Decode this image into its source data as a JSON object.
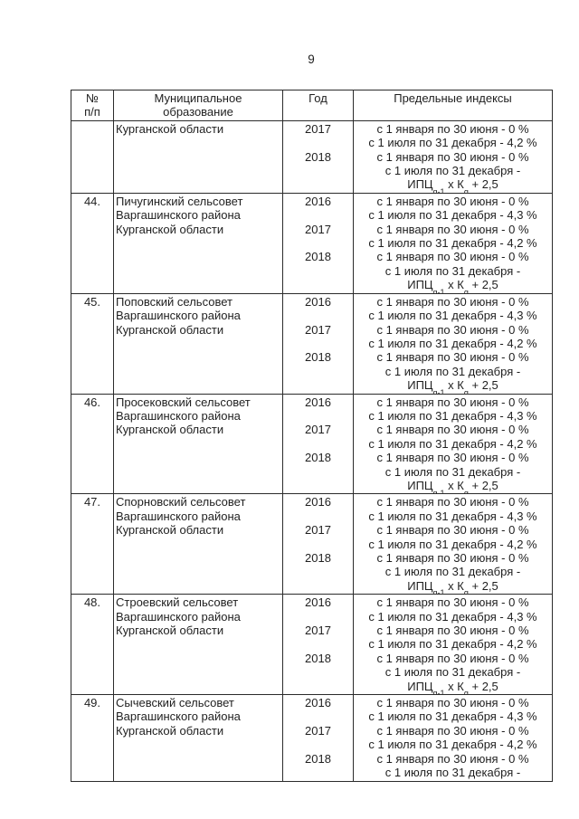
{
  "page": {
    "number": "9"
  },
  "table": {
    "headers": {
      "col1": [
        "№",
        "п/п"
      ],
      "col2": [
        "Муниципальное",
        "образование"
      ],
      "col3": "Год",
      "col4": "Предельные индексы"
    },
    "rows": [
      {
        "num": "",
        "municipality": [
          "Курганской области"
        ],
        "years": [
          "2017",
          "",
          "2018"
        ],
        "indices": [
          "с 1 января по 30 июня - 0 %",
          "с 1 июля по 31 декабря - 4,2 %",
          "с 1 января по 30 июня - 0 %",
          "с 1 июля по 31 декабря -",
          {
            "formula": [
              {
                "t": "ИПЦ"
              },
              {
                "sub": "g-1"
              },
              {
                "t": " х К"
              },
              {
                "sub": "g"
              },
              {
                "t": " + 2,5"
              }
            ]
          }
        ]
      },
      {
        "num": "44.",
        "municipality": [
          "Пичугинский сельсовет",
          "Варгашинского района",
          "Курганской области"
        ],
        "years": [
          "2016",
          "",
          "2017",
          "",
          "2018"
        ],
        "indices": [
          "с 1 января по 30 июня - 0 %",
          "с 1 июля по 31 декабря - 4,3 %",
          "с 1 января по 30 июня - 0 %",
          "с 1 июля по 31 декабря - 4,2 %",
          "с 1 января по 30 июня - 0 %",
          "с 1 июля по 31 декабря -",
          {
            "formula": [
              {
                "t": "ИПЦ"
              },
              {
                "sub": "g-1"
              },
              {
                "t": " х К"
              },
              {
                "sub": "g"
              },
              {
                "t": " + 2,5"
              }
            ]
          }
        ]
      },
      {
        "num": "45.",
        "municipality": [
          "Поповский сельсовет",
          "Варгашинского района",
          "Курганской области"
        ],
        "years": [
          "2016",
          "",
          "2017",
          "",
          "2018"
        ],
        "indices": [
          "с 1 января по 30 июня - 0 %",
          "с 1 июля по 31 декабря - 4,3 %",
          "с 1 января по 30 июня - 0 %",
          "с 1 июля по 31 декабря - 4,2 %",
          "с 1 января по 30 июня - 0 %",
          "с 1 июля по 31 декабря -",
          {
            "formula": [
              {
                "t": "ИПЦ"
              },
              {
                "sub": "g-1"
              },
              {
                "t": " х К"
              },
              {
                "sub": "g"
              },
              {
                "t": " + 2,5"
              }
            ]
          }
        ]
      },
      {
        "num": "46.",
        "municipality": [
          "Просековский сельсовет",
          "Варгашинского района",
          "Курганской области"
        ],
        "years": [
          "2016",
          "",
          "2017",
          "",
          "2018"
        ],
        "indices": [
          "с 1 января по 30 июня - 0 %",
          "с 1 июля по 31 декабря - 4,3 %",
          "с 1 января по 30 июня - 0 %",
          "с 1 июля по 31 декабря - 4,2 %",
          "с 1 января по 30 июня - 0 %",
          "с 1 июля по 31 декабря -",
          {
            "formula": [
              {
                "t": "ИПЦ"
              },
              {
                "sub": "g-1"
              },
              {
                "t": " х К"
              },
              {
                "sub": "g"
              },
              {
                "t": " + 2,5"
              }
            ]
          }
        ]
      },
      {
        "num": "47.",
        "municipality": [
          "Спорновский сельсовет",
          "Варгашинского района",
          "Курганской области"
        ],
        "years": [
          "2016",
          "",
          "2017",
          "",
          "2018"
        ],
        "indices": [
          "с 1 января по 30 июня - 0 %",
          "с 1 июля по 31 декабря - 4,3 %",
          "с 1 января по 30 июня - 0 %",
          "с 1 июля по 31 декабря - 4,2 %",
          "с 1 января по 30 июня - 0 %",
          "с 1 июля по 31 декабря -",
          {
            "formula": [
              {
                "t": "ИПЦ"
              },
              {
                "sub": "g-1"
              },
              {
                "t": " х К"
              },
              {
                "sub": "g"
              },
              {
                "t": " + 2,5"
              }
            ]
          }
        ]
      },
      {
        "num": "48.",
        "municipality": [
          "Строевский сельсовет",
          "Варгашинского района",
          "Курганской области"
        ],
        "years": [
          "2016",
          "",
          "2017",
          "",
          "2018"
        ],
        "indices": [
          "с 1 января по 30 июня - 0 %",
          "с 1 июля по 31 декабря - 4,3 %",
          "с 1 января по 30 июня - 0 %",
          "с 1 июля по 31 декабря - 4,2 %",
          "с 1 января по 30 июня - 0 %",
          "с 1 июля по 31 декабря -",
          {
            "formula": [
              {
                "t": "ИПЦ"
              },
              {
                "sub": "g-1"
              },
              {
                "t": " х К"
              },
              {
                "sub": "g"
              },
              {
                "t": " + 2,5"
              }
            ]
          }
        ]
      },
      {
        "num": "49.",
        "municipality": [
          "Сычевский сельсовет",
          "Варгашинского района",
          "Курганской области"
        ],
        "years": [
          "2016",
          "",
          "2017",
          "",
          "2018"
        ],
        "indices": [
          "с 1 января по 30 июня - 0 %",
          "с 1 июля по 31 декабря - 4,3 %",
          "с 1 января по 30 июня - 0 %",
          "с 1 июля по 31 декабря - 4,2 %",
          "с 1 января по 30 июня - 0 %",
          "с 1 июля по 31 декабря -"
        ]
      }
    ]
  }
}
